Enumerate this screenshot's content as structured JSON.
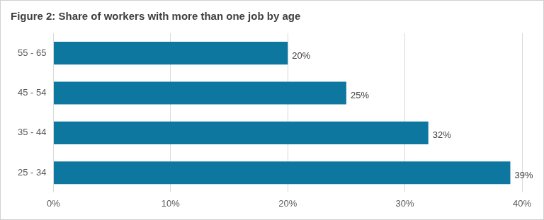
{
  "chart_data": {
    "type": "bar",
    "orientation": "horizontal",
    "title": "Figure 2: Share of workers with more than one job by age",
    "categories": [
      "55 - 65",
      "45 - 54",
      "35 - 44",
      "25 - 34"
    ],
    "values": [
      20,
      25,
      32,
      39
    ],
    "value_labels": [
      "20%",
      "25%",
      "32%",
      "39%"
    ],
    "color": "#0e77a0",
    "xlim": [
      0,
      40
    ],
    "xticks": [
      {
        "value": 0,
        "label": "0%"
      },
      {
        "value": 10,
        "label": "10%"
      },
      {
        "value": 20,
        "label": "20%"
      },
      {
        "value": 30,
        "label": "30%"
      },
      {
        "value": 40,
        "label": "40%"
      }
    ],
    "grid": true,
    "data_labels": true
  }
}
